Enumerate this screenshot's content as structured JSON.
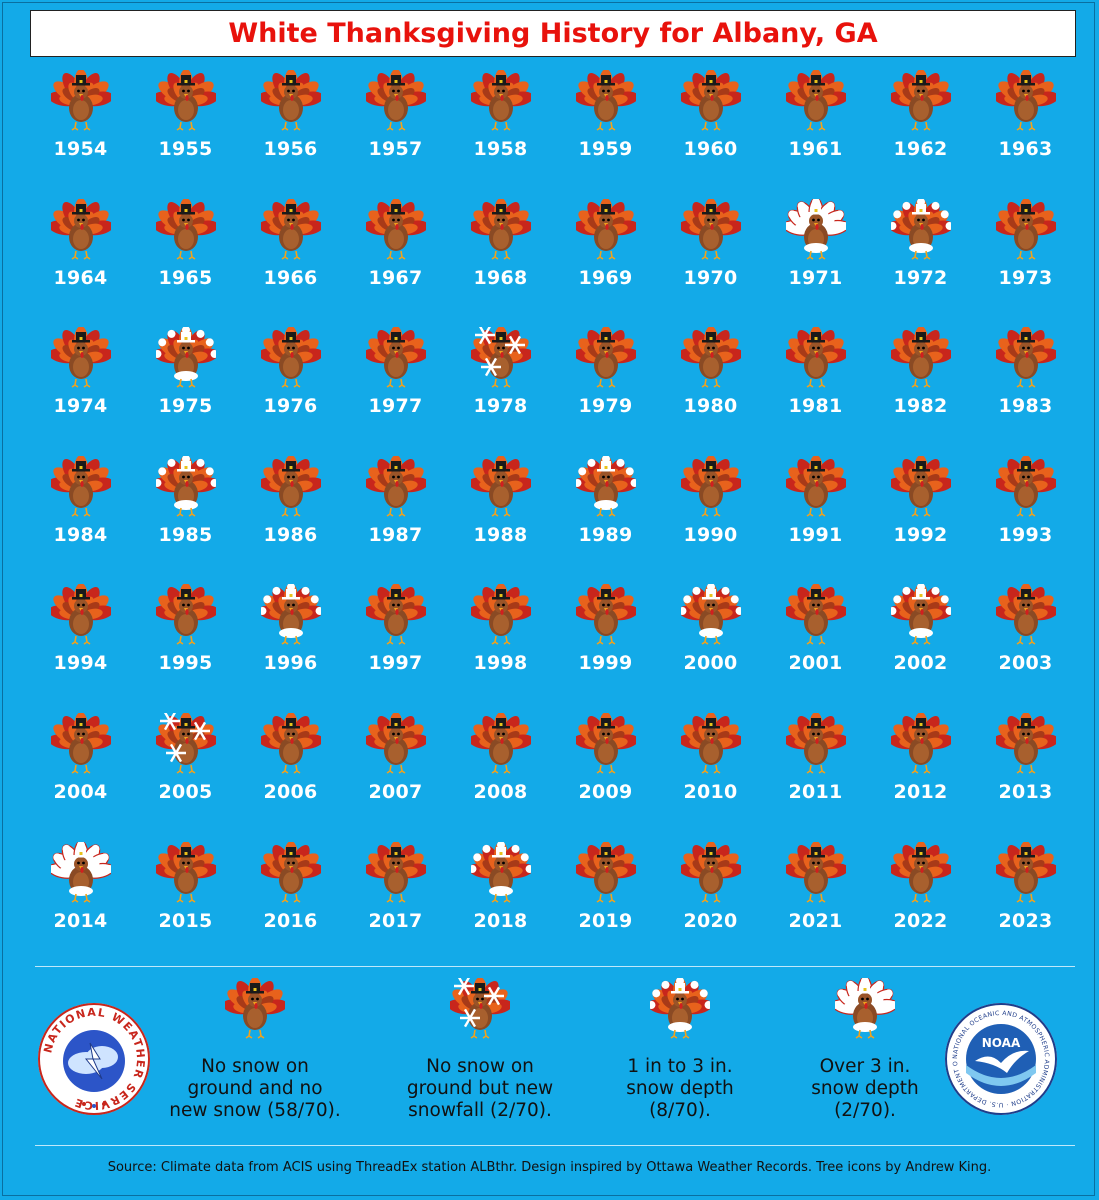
{
  "title": "White Thanksgiving History for Albany, GA",
  "years": [
    {
      "year": "1954",
      "category": "none"
    },
    {
      "year": "1955",
      "category": "none"
    },
    {
      "year": "1956",
      "category": "none"
    },
    {
      "year": "1957",
      "category": "none"
    },
    {
      "year": "1958",
      "category": "none"
    },
    {
      "year": "1959",
      "category": "none"
    },
    {
      "year": "1960",
      "category": "none"
    },
    {
      "year": "1961",
      "category": "none"
    },
    {
      "year": "1962",
      "category": "none"
    },
    {
      "year": "1963",
      "category": "none"
    },
    {
      "year": "1964",
      "category": "none"
    },
    {
      "year": "1965",
      "category": "none"
    },
    {
      "year": "1966",
      "category": "none"
    },
    {
      "year": "1967",
      "category": "none"
    },
    {
      "year": "1968",
      "category": "none"
    },
    {
      "year": "1969",
      "category": "none"
    },
    {
      "year": "1970",
      "category": "none"
    },
    {
      "year": "1971",
      "category": "over3"
    },
    {
      "year": "1972",
      "category": "1to3"
    },
    {
      "year": "1973",
      "category": "none"
    },
    {
      "year": "1974",
      "category": "none"
    },
    {
      "year": "1975",
      "category": "1to3"
    },
    {
      "year": "1976",
      "category": "none"
    },
    {
      "year": "1977",
      "category": "none"
    },
    {
      "year": "1978",
      "category": "newsnow"
    },
    {
      "year": "1979",
      "category": "none"
    },
    {
      "year": "1980",
      "category": "none"
    },
    {
      "year": "1981",
      "category": "none"
    },
    {
      "year": "1982",
      "category": "none"
    },
    {
      "year": "1983",
      "category": "none"
    },
    {
      "year": "1984",
      "category": "none"
    },
    {
      "year": "1985",
      "category": "1to3"
    },
    {
      "year": "1986",
      "category": "none"
    },
    {
      "year": "1987",
      "category": "none"
    },
    {
      "year": "1988",
      "category": "none"
    },
    {
      "year": "1989",
      "category": "1to3"
    },
    {
      "year": "1990",
      "category": "none"
    },
    {
      "year": "1991",
      "category": "none"
    },
    {
      "year": "1992",
      "category": "none"
    },
    {
      "year": "1993",
      "category": "none"
    },
    {
      "year": "1994",
      "category": "none"
    },
    {
      "year": "1995",
      "category": "none"
    },
    {
      "year": "1996",
      "category": "1to3"
    },
    {
      "year": "1997",
      "category": "none"
    },
    {
      "year": "1998",
      "category": "none"
    },
    {
      "year": "1999",
      "category": "none"
    },
    {
      "year": "2000",
      "category": "1to3"
    },
    {
      "year": "2001",
      "category": "none"
    },
    {
      "year": "2002",
      "category": "1to3"
    },
    {
      "year": "2003",
      "category": "none"
    },
    {
      "year": "2004",
      "category": "none"
    },
    {
      "year": "2005",
      "category": "newsnow"
    },
    {
      "year": "2006",
      "category": "none"
    },
    {
      "year": "2007",
      "category": "none"
    },
    {
      "year": "2008",
      "category": "none"
    },
    {
      "year": "2009",
      "category": "none"
    },
    {
      "year": "2010",
      "category": "none"
    },
    {
      "year": "2011",
      "category": "none"
    },
    {
      "year": "2012",
      "category": "none"
    },
    {
      "year": "2013",
      "category": "none"
    },
    {
      "year": "2014",
      "category": "over3"
    },
    {
      "year": "2015",
      "category": "none"
    },
    {
      "year": "2016",
      "category": "none"
    },
    {
      "year": "2017",
      "category": "none"
    },
    {
      "year": "2018",
      "category": "1to3"
    },
    {
      "year": "2019",
      "category": "none"
    },
    {
      "year": "2020",
      "category": "none"
    },
    {
      "year": "2021",
      "category": "none"
    },
    {
      "year": "2022",
      "category": "none"
    },
    {
      "year": "2023",
      "category": "none"
    }
  ],
  "legend": [
    {
      "category": "none",
      "text": "No snow on ground and no new snow (58/70).",
      "lines": [
        "No snow on",
        "ground and no",
        "new snow (58/70)."
      ]
    },
    {
      "category": "newsnow",
      "text": "No snow on ground but new snowfall (2/70).",
      "lines": [
        "No snow on",
        "ground but new",
        "snowfall (2/70)."
      ]
    },
    {
      "category": "1to3",
      "text": "1 in to 3 in. snow depth (8/70).",
      "lines": [
        "1 in to 3 in.",
        "snow depth",
        "(8/70)."
      ]
    },
    {
      "category": "over3",
      "text": "Over 3 in. snow depth (2/70).",
      "lines": [
        "Over 3 in.",
        "snow depth",
        "(2/70)."
      ]
    }
  ],
  "logos": {
    "nws": {
      "name": "nws-logo",
      "text": "NATIONAL WEATHER SERVICE"
    },
    "noaa": {
      "name": "noaa-logo",
      "center": "NOAA",
      "ring": "NATIONAL OCEANIC AND ATMOSPHERIC ADMINISTRATION · U.S. DEPARTMENT OF COMMERCE"
    }
  },
  "source": "Source: Climate data from ACIS using ThreadEx station ALBthr. Design inspired by Ottawa Weather Records. Tree icons by Andrew King.",
  "colors": {
    "background": "#13aae8",
    "title": "#e8120c",
    "turkey_body": "#8a4a24",
    "feather_red": "#c8261c",
    "feather_orange": "#e8621c",
    "hat": "#1a1a1a",
    "snow": "#ffffff"
  }
}
